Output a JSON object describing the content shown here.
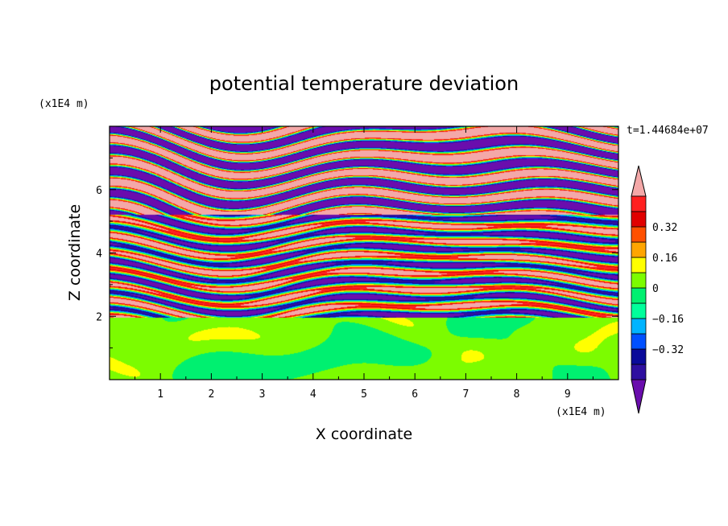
{
  "chart_data": {
    "type": "heatmap",
    "title": "potential temperature deviation",
    "xlabel": "X coordinate",
    "ylabel": "Z coordinate",
    "x_unit": "(x1E4 m)",
    "z_unit": "(x1E4 m)",
    "time_label": "t=1.44684e+07",
    "xlim": [
      0,
      10
    ],
    "zlim": [
      0,
      8
    ],
    "x_ticks": [
      "1",
      "2",
      "3",
      "4",
      "5",
      "6",
      "7",
      "8",
      "9"
    ],
    "z_ticks": [
      "2",
      "4",
      "6"
    ],
    "colorbar": {
      "labels": [
        "0.32",
        "0.16",
        "0",
        "−0.16",
        "−0.32"
      ],
      "label_values": [
        0.32,
        0.16,
        0,
        -0.16,
        -0.32
      ],
      "levels": [
        -0.48,
        -0.4,
        -0.32,
        -0.24,
        -0.16,
        -0.08,
        0,
        0.08,
        0.16,
        0.24,
        0.32,
        0.4,
        0.48
      ],
      "colors": [
        "#6a0dad",
        "#2e0fa0",
        "#0a0a9a",
        "#0050ff",
        "#00b4ff",
        "#00ff9b",
        "#00f070",
        "#7cfc00",
        "#ffff00",
        "#ffa500",
        "#ff5000",
        "#e00000",
        "#ff2020",
        "#f4a8a8"
      ],
      "under_color": "#6a0dad",
      "over_color": "#f4a8a8"
    },
    "bands": [
      {
        "z_range": [
          0,
          1.95
        ],
        "pattern": "turbulent mixed layer",
        "colors": [
          "#7cfc00",
          "#00f070"
        ],
        "value_range": [
          -0.04,
          0.08
        ]
      },
      {
        "z_range": [
          1.95,
          5.2
        ],
        "pattern": "fine interleaved layers",
        "colors": [
          "#6a0dad",
          "#0a0a9a",
          "#00b4ff",
          "#00f070",
          "#ffff00",
          "#ff5000",
          "#f4a8a8"
        ],
        "value_range": [
          -0.5,
          0.5
        ]
      },
      {
        "z_range": [
          5.2,
          8.0
        ],
        "pattern": "broad alternating layers",
        "colors": [
          "#6a0dad",
          "#f4a8a8"
        ],
        "value_range": [
          -0.5,
          0.5
        ]
      }
    ]
  }
}
